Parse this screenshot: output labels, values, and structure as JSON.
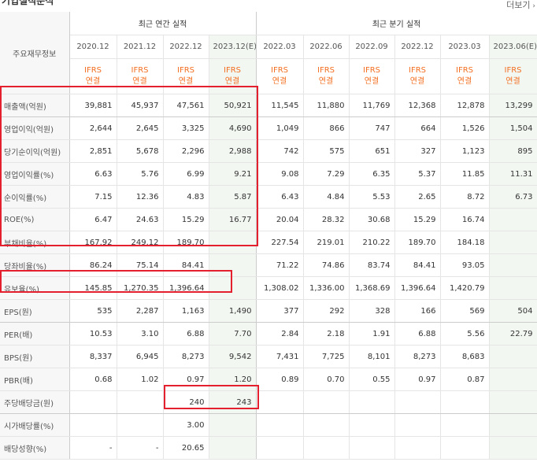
{
  "header": {
    "title": "기업실적분석",
    "more_label": "더보기"
  },
  "table": {
    "corner_label": "주요재무정보",
    "groups": {
      "annual": "최근 연간 실적",
      "quarter": "최근 분기 실적"
    },
    "periods": [
      "2020.12",
      "2021.12",
      "2022.12",
      "2023.12(E)",
      "2022.03",
      "2022.06",
      "2022.09",
      "2022.12",
      "2023.03",
      "2023.06(E)"
    ],
    "ifrs": {
      "line1": "IFRS",
      "line2": "연결"
    },
    "rows": [
      {
        "label": "매출액(억원)",
        "values": [
          "39,881",
          "45,937",
          "47,561",
          "50,921",
          "11,545",
          "11,880",
          "11,769",
          "12,368",
          "12,878",
          "13,299"
        ]
      },
      {
        "label": "영업이익(억원)",
        "values": [
          "2,644",
          "2,645",
          "3,325",
          "4,690",
          "1,049",
          "866",
          "747",
          "664",
          "1,526",
          "1,504"
        ]
      },
      {
        "label": "당기순이익(억원)",
        "values": [
          "2,851",
          "5,678",
          "2,296",
          "2,988",
          "742",
          "575",
          "651",
          "327",
          "1,123",
          "895"
        ]
      },
      {
        "label": "영업이익률(%)",
        "values": [
          "6.63",
          "5.76",
          "6.99",
          "9.21",
          "9.08",
          "7.29",
          "6.35",
          "5.37",
          "11.85",
          "11.31"
        ]
      },
      {
        "label": "순이익률(%)",
        "values": [
          "7.15",
          "12.36",
          "4.83",
          "5.87",
          "6.43",
          "4.84",
          "5.53",
          "2.65",
          "8.72",
          "6.73"
        ]
      },
      {
        "label": "ROE(%)",
        "values": [
          "6.47",
          "24.63",
          "15.29",
          "16.77",
          "20.04",
          "28.32",
          "30.68",
          "15.29",
          "16.74",
          ""
        ]
      },
      {
        "label": "부채비율(%)",
        "values": [
          "167.92",
          "249.12",
          "189.70",
          "",
          "227.54",
          "219.01",
          "210.22",
          "189.70",
          "184.18",
          ""
        ]
      },
      {
        "label": "당좌비율(%)",
        "values": [
          "86.24",
          "75.14",
          "84.41",
          "",
          "71.22",
          "74.86",
          "83.74",
          "84.41",
          "93.05",
          ""
        ]
      },
      {
        "label": "유보율(%)",
        "values": [
          "145.85",
          "1,270.35",
          "1,396.64",
          "",
          "1,308.02",
          "1,336.00",
          "1,368.69",
          "1,396.64",
          "1,420.79",
          ""
        ]
      },
      {
        "label": "EPS(원)",
        "values": [
          "535",
          "2,287",
          "1,163",
          "1,490",
          "377",
          "292",
          "328",
          "166",
          "569",
          "504"
        ]
      },
      {
        "label": "PER(배)",
        "values": [
          "10.53",
          "3.10",
          "6.88",
          "7.70",
          "2.84",
          "2.18",
          "1.91",
          "6.88",
          "5.56",
          "22.79"
        ]
      },
      {
        "label": "BPS(원)",
        "values": [
          "8,337",
          "6,945",
          "8,273",
          "9,542",
          "7,431",
          "7,725",
          "8,101",
          "8,273",
          "8,683",
          ""
        ]
      },
      {
        "label": "PBR(배)",
        "values": [
          "0.68",
          "1.02",
          "0.97",
          "1.20",
          "0.89",
          "0.70",
          "0.55",
          "0.97",
          "0.87",
          ""
        ]
      },
      {
        "label": "주당배당금(원)",
        "values": [
          "",
          "",
          "240",
          "243",
          "",
          "",
          "",
          "",
          "",
          ""
        ]
      },
      {
        "label": "시가배당률(%)",
        "values": [
          "",
          "",
          "3.00",
          "",
          "",
          "",
          "",
          "",
          "",
          ""
        ]
      },
      {
        "label": "배당성향(%)",
        "values": [
          "-",
          "-",
          "20.65",
          "",
          "",
          "",
          "",
          "",
          "",
          ""
        ]
      }
    ]
  }
}
